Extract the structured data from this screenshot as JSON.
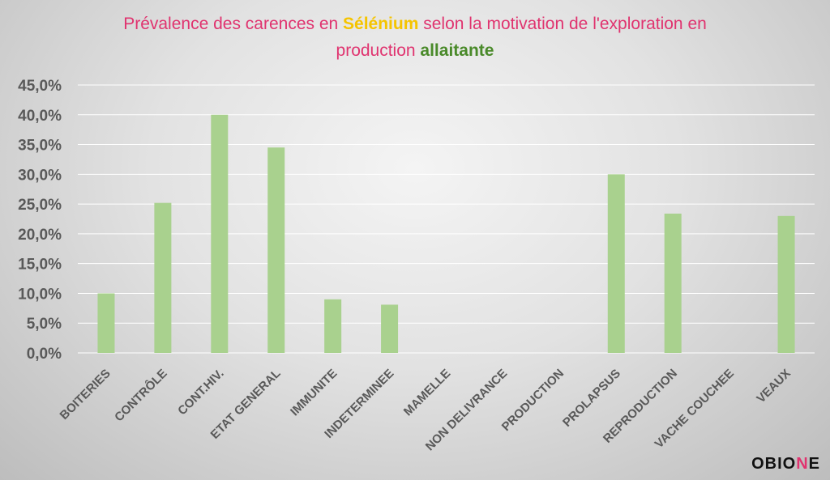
{
  "title": {
    "line1_a": "Prévalence des carences en ",
    "line1_highlight": "Sélénium",
    "line1_b": " selon la motivation de l'exploration en",
    "line2_a": "production ",
    "line2_highlight": "allaitante"
  },
  "logo": {
    "text_a": "OBIO",
    "text_accent": "N",
    "text_b": "E"
  },
  "colors": {
    "bar": "#a9d18e",
    "title": "#e0336f",
    "highlight_yellow": "#f5c400",
    "highlight_green": "#4a8a2a",
    "tick_text": "#595959",
    "grid": "#ffffff"
  },
  "chart_data": {
    "type": "bar",
    "title": "Prévalence des carences en Sélénium selon la motivation de l'exploration en production allaitante",
    "categories": [
      "BOITERIES",
      "CONTRÔLE",
      "CONT.HIV.",
      "ETAT GENERAL",
      "IMMUNITE",
      "INDETERMINEE",
      "MAMELLE",
      "NON DELIVRANCE",
      "PRODUCTION",
      "PROLAPSUS",
      "REPRODUCTION",
      "VACHE COUCHEE",
      "VEAUX"
    ],
    "values": [
      10.0,
      25.2,
      40.0,
      34.5,
      9.0,
      8.1,
      0,
      0,
      0,
      30.0,
      23.4,
      0,
      23.0
    ],
    "ylim": [
      0,
      45
    ],
    "yticks": [
      "0,0%",
      "5,0%",
      "10,0%",
      "15,0%",
      "20,0%",
      "25,0%",
      "30,0%",
      "35,0%",
      "40,0%",
      "45,0%"
    ],
    "xlabel": "",
    "ylabel": "",
    "grid": true
  }
}
